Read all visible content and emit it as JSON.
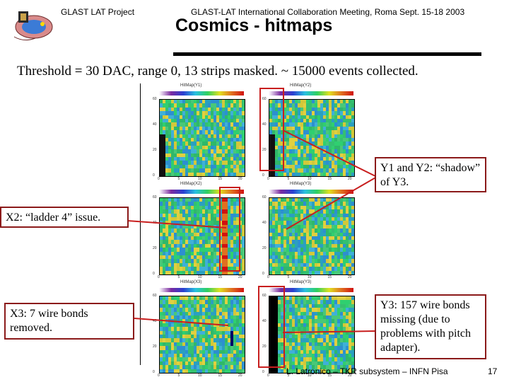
{
  "header": {
    "project": "GLAST LAT Project",
    "meeting": "GLAST-LAT International Collaboration Meeting, Roma Sept. 15-18 2003",
    "title": "Cosmics - hitmaps"
  },
  "subtitle": "Threshold = 30 DAC, range 0, 13 strips masked. ~ 15000 events collected.",
  "callouts": {
    "y1y2": "Y1 and Y2: “shadow” of Y3.",
    "x2": "X2: “ladder 4” issue.",
    "x3": "X3: 7 wire bonds removed.",
    "y3": "Y3: 157 wire bonds missing (due to problems with pitch adapter)."
  },
  "plots": [
    {
      "id": "Y1",
      "title": "HitMap(Y1)",
      "xticks": [
        "0",
        "5",
        "10",
        "15",
        "20"
      ],
      "yticks": [
        "60",
        "40",
        "20",
        "0"
      ]
    },
    {
      "id": "Y2",
      "title": "HitMap(Y2)",
      "xticks": [
        "0",
        "5",
        "10",
        "15",
        "20"
      ],
      "yticks": [
        "60",
        "40",
        "20",
        "0"
      ]
    },
    {
      "id": "X2",
      "title": "HitMap(X2)",
      "xticks": [
        "0",
        "5",
        "10",
        "15",
        "20"
      ],
      "yticks": [
        "60",
        "40",
        "20",
        "0"
      ]
    },
    {
      "id": "Y3a",
      "title": "HitMap(Y3)",
      "xticks": [
        "0",
        "5",
        "10",
        "15",
        "20"
      ],
      "yticks": [
        "60",
        "40",
        "20",
        "0"
      ]
    },
    {
      "id": "X3",
      "title": "HitMap(X3)",
      "xticks": [
        "0",
        "5",
        "10",
        "15",
        "20"
      ],
      "yticks": [
        "60",
        "40",
        "20",
        "0"
      ]
    },
    {
      "id": "Y3",
      "title": "HitMap(Y3)",
      "xticks": [
        "0",
        "5",
        "10",
        "15",
        "20"
      ],
      "yticks": [
        "60",
        "40",
        "20",
        "0"
      ]
    }
  ],
  "footer": {
    "author": "L. Latronico – TKR subsystem – INFN Pisa",
    "page": "17"
  },
  "colors": {
    "accent": "#c81e1e",
    "callout_border": "#8b1a1a"
  }
}
